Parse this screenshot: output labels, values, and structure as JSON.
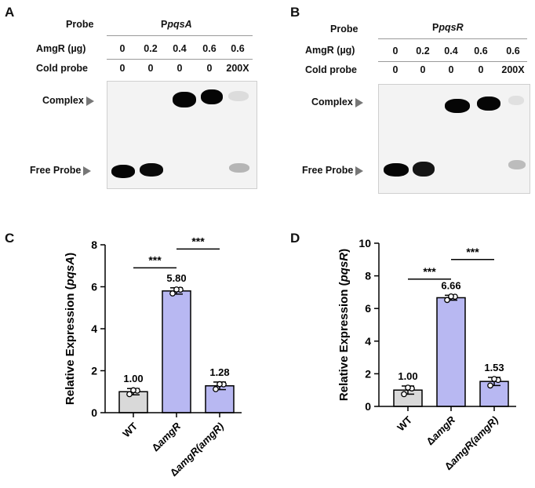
{
  "panels": {
    "A": {
      "letter": "A",
      "probe_label": "Probe",
      "probe_prefix": "P",
      "probe_gene": "pqsA",
      "amgr_label": "AmgR (µg)",
      "amgr_values": [
        "0",
        "0.2",
        "0.4",
        "0.6",
        "0.6"
      ],
      "cold_label": "Cold probe",
      "cold_values": [
        "0",
        "0",
        "0",
        "0",
        "200X"
      ],
      "complex_label": "Complex",
      "free_label": "Free Probe"
    },
    "B": {
      "letter": "B",
      "probe_label": "Probe",
      "probe_prefix": "P",
      "probe_gene": "pqsR",
      "amgr_label": "AmgR (µg)",
      "amgr_values": [
        "0",
        "0.2",
        "0.4",
        "0.6",
        "0.6"
      ],
      "cold_label": "Cold probe",
      "cold_values": [
        "0",
        "0",
        "0",
        "0",
        "200X"
      ],
      "complex_label": "Complex",
      "free_label": "Free Probe"
    }
  },
  "chart_data": [
    {
      "panel": "C",
      "type": "bar",
      "categories": [
        {
          "prefix": "",
          "italic": "",
          "suffix": "WT"
        },
        {
          "prefix": "Δ",
          "italic": "amgR",
          "suffix": ""
        },
        {
          "prefix": "Δ",
          "italic": "amgR(amgR)",
          "suffix": ""
        }
      ],
      "values": [
        1.0,
        5.8,
        1.28
      ],
      "value_labels": [
        "1.00",
        "5.80",
        "1.28"
      ],
      "errors": [
        0.15,
        0.15,
        0.18
      ],
      "points": [
        [
          0.88,
          1.05,
          1.07
        ],
        [
          5.68,
          5.86,
          5.87
        ],
        [
          1.12,
          1.35,
          1.36
        ]
      ],
      "bar_colors": [
        "#d9d9d9",
        "#b8b8f2",
        "#b8b8f2"
      ],
      "ylabel_prefix": "Relative Expression (",
      "ylabel_italic": "pqsA",
      "ylabel_suffix": ")",
      "ylim": [
        0,
        8
      ],
      "yticks": [
        "0",
        "2",
        "4",
        "6",
        "8"
      ],
      "significance": [
        {
          "from": 0,
          "to": 1,
          "label": "***",
          "y": 6.9
        },
        {
          "from": 1,
          "to": 2,
          "label": "***",
          "y": 7.8
        }
      ]
    },
    {
      "panel": "D",
      "type": "bar",
      "categories": [
        {
          "prefix": "",
          "italic": "",
          "suffix": "WT"
        },
        {
          "prefix": "Δ",
          "italic": "amgR",
          "suffix": ""
        },
        {
          "prefix": "Δ",
          "italic": "amgR(amgR)",
          "suffix": ""
        }
      ],
      "values": [
        1.0,
        6.66,
        1.53
      ],
      "value_labels": [
        "1.00",
        "6.66",
        "1.53"
      ],
      "errors": [
        0.25,
        0.15,
        0.25
      ],
      "points": [
        [
          0.75,
          1.1,
          1.15
        ],
        [
          6.52,
          6.72,
          6.74
        ],
        [
          1.28,
          1.62,
          1.68
        ]
      ],
      "bar_colors": [
        "#d9d9d9",
        "#b8b8f2",
        "#b8b8f2"
      ],
      "ylabel_prefix": "Relative Expression (",
      "ylabel_italic": "pqsR",
      "ylabel_suffix": ")",
      "ylim": [
        0,
        10
      ],
      "yticks": [
        "0",
        "2",
        "4",
        "6",
        "8",
        "10"
      ],
      "significance": [
        {
          "from": 0,
          "to": 1,
          "label": "***",
          "y": 7.8
        },
        {
          "from": 1,
          "to": 2,
          "label": "***",
          "y": 9.0
        }
      ]
    }
  ]
}
